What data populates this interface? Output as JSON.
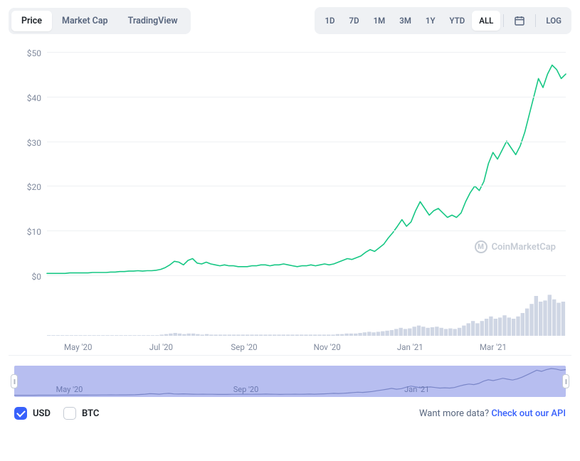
{
  "tabs": {
    "items": [
      {
        "label": "Price",
        "active": true
      },
      {
        "label": "Market Cap",
        "active": false
      },
      {
        "label": "TradingView",
        "active": false
      }
    ]
  },
  "ranges": {
    "items": [
      {
        "label": "1D"
      },
      {
        "label": "7D"
      },
      {
        "label": "1M"
      },
      {
        "label": "3M"
      },
      {
        "label": "1Y"
      },
      {
        "label": "YTD"
      },
      {
        "label": "ALL",
        "active": true
      }
    ],
    "log_label": "LOG"
  },
  "chart": {
    "type": "line",
    "line_color": "#16c784",
    "line_width": 1.6,
    "volume_color": "#cfd6e4",
    "grid_color": "#eef0f3",
    "background": "#ffffff",
    "axis_text_color": "#808a9d",
    "y": {
      "min": -2,
      "max": 52,
      "ticks": [
        0,
        10,
        20,
        30,
        40,
        50
      ],
      "format_prefix": "$"
    },
    "x": {
      "labels": [
        "May '20",
        "Jul '20",
        "Sep '20",
        "Nov '20",
        "Jan '21",
        "Mar '21"
      ],
      "positions_pct": [
        6,
        22,
        38,
        54,
        70,
        86
      ]
    },
    "series": [
      0.5,
      0.5,
      0.5,
      0.5,
      0.5,
      0.6,
      0.6,
      0.6,
      0.6,
      0.6,
      0.7,
      0.7,
      0.7,
      0.7,
      0.8,
      0.8,
      0.9,
      0.9,
      1.0,
      1.0,
      1.1,
      1.0,
      1.1,
      1.1,
      1.2,
      1.4,
      1.8,
      2.4,
      3.2,
      3.0,
      2.4,
      3.4,
      3.8,
      2.8,
      2.6,
      3.0,
      2.6,
      2.4,
      2.2,
      2.4,
      2.2,
      2.2,
      2.0,
      2.0,
      2.0,
      2.2,
      2.2,
      2.4,
      2.4,
      2.2,
      2.4,
      2.4,
      2.6,
      2.4,
      2.2,
      2.0,
      2.2,
      2.2,
      2.4,
      2.2,
      2.4,
      2.6,
      2.4,
      2.6,
      3.0,
      3.4,
      3.8,
      3.6,
      4.0,
      4.4,
      5.2,
      5.8,
      5.4,
      6.2,
      7.0,
      8.4,
      9.6,
      11.0,
      12.5,
      11.0,
      12.0,
      14.5,
      16.5,
      15.0,
      13.5,
      14.5,
      15.0,
      14.0,
      13.0,
      13.5,
      13.0,
      14.0,
      16.5,
      18.5,
      20.0,
      19.0,
      21.0,
      25.0,
      27.5,
      26.0,
      28.0,
      30.0,
      28.5,
      27.0,
      29.0,
      32.0,
      36.0,
      40.0,
      44.0,
      42.0,
      45.0,
      47.0,
      46.0,
      44.0,
      45.0
    ],
    "volume": [
      1,
      1,
      1,
      1,
      1,
      1,
      1,
      1,
      1,
      1,
      1,
      1,
      1,
      1,
      1,
      1,
      1,
      1,
      1,
      1,
      1,
      1,
      1,
      1,
      1,
      2,
      3,
      4,
      5,
      4,
      3,
      4,
      4,
      3,
      2,
      3,
      2,
      2,
      2,
      2,
      2,
      2,
      2,
      2,
      2,
      2,
      2,
      2,
      2,
      2,
      2,
      2,
      2,
      2,
      2,
      2,
      2,
      2,
      2,
      2,
      2,
      2,
      2,
      2,
      3,
      3,
      4,
      4,
      4,
      5,
      6,
      7,
      6,
      7,
      8,
      9,
      10,
      12,
      14,
      12,
      13,
      16,
      18,
      16,
      14,
      15,
      16,
      14,
      12,
      13,
      12,
      14,
      18,
      22,
      26,
      22,
      26,
      30,
      34,
      30,
      32,
      36,
      32,
      30,
      34,
      40,
      48,
      56,
      70,
      60,
      62,
      72,
      64,
      58,
      60
    ],
    "volume_max": 80
  },
  "watermark": {
    "text": "CoinMarketCap"
  },
  "brush": {
    "bg": "#b7bef0",
    "labels": [
      "May '20",
      "Sep '20",
      "Jan '21"
    ],
    "positions_pct": [
      10,
      42,
      73
    ]
  },
  "currencies": [
    {
      "label": "USD",
      "checked": true
    },
    {
      "label": "BTC",
      "checked": false
    }
  ],
  "cta": {
    "prefix": "Want more data? ",
    "link_text": "Check out our API"
  }
}
